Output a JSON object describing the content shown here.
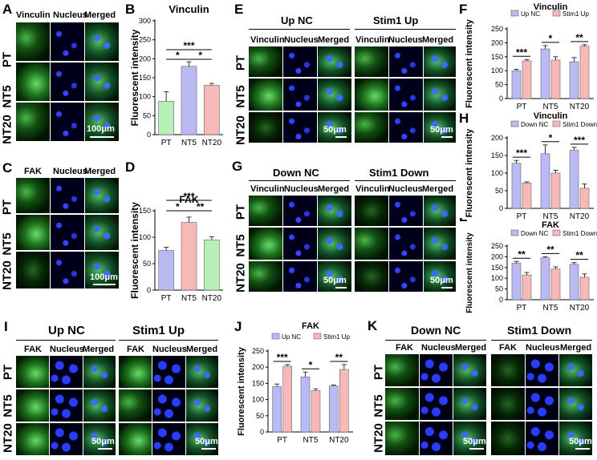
{
  "panels": {
    "A": {
      "letter": "A",
      "headers": [
        "Vinculin",
        "Nucleus",
        "Merged"
      ],
      "rows": [
        "PT",
        "NT5",
        "NT20"
      ],
      "scale": "100μm"
    },
    "C": {
      "letter": "C",
      "headers": [
        "FAK",
        "Nucleus",
        "Merged"
      ],
      "rows": [
        "PT",
        "NT5",
        "NT20"
      ],
      "scale": "100μm"
    },
    "E": {
      "letter": "E",
      "group1": "Up NC",
      "group2": "Stim1 Up",
      "headers": [
        "Vinculin",
        "Nucleus",
        "Merged"
      ],
      "rows": [
        "PT",
        "NT5",
        "NT20"
      ],
      "scale": "50μm"
    },
    "G": {
      "letter": "G",
      "group1": "Down NC",
      "group2": "Stim1 Down",
      "headers": [
        "Vinculin",
        "Nucleus",
        "Merged"
      ],
      "rows": [
        "PT",
        "NT5",
        "NT20"
      ],
      "scale": "50μm"
    },
    "I": {
      "letter": "I",
      "group1": "Up NC",
      "group2": "Stim1 Up",
      "headers": [
        "FAK",
        "Nucleus",
        "Merged"
      ],
      "rows": [
        "PT",
        "NT5",
        "NT20"
      ],
      "scale": "50μm"
    },
    "K": {
      "letter": "K",
      "group1": "Down NC",
      "group2": "Stim1 Down",
      "headers": [
        "FAK",
        "Nucleus",
        "Merged"
      ],
      "rows": [
        "PT",
        "NT5",
        "NT20"
      ],
      "scale": "50μm"
    }
  },
  "chart_data": [
    {
      "id": "B",
      "letter": "B",
      "type": "bar",
      "title": "Vinculin",
      "ylabel": "Fluorescent intensity",
      "categories": [
        "PT",
        "NT5",
        "NT20"
      ],
      "values": [
        88,
        180,
        130
      ],
      "errors": [
        25,
        12,
        5
      ],
      "colors": [
        "#b6f0b6",
        "#b9b9f4",
        "#f7b8b8"
      ],
      "ylim": [
        0,
        300
      ],
      "yticks": [
        "0",
        "50",
        "100",
        "150",
        "200",
        "250",
        "300"
      ],
      "sig": [
        "***",
        "*",
        "*"
      ]
    },
    {
      "id": "D",
      "letter": "D",
      "type": "bar",
      "title": "FAK",
      "ylabel": "Fluorescent intensity",
      "categories": [
        "PT",
        "NT5",
        "NT20"
      ],
      "values": [
        75,
        128,
        95
      ],
      "errors": [
        6,
        10,
        6
      ],
      "colors": [
        "#b9b9f4",
        "#f7b8b8",
        "#b6f0b6"
      ],
      "ylim": [
        0,
        150
      ],
      "yticks": [
        "0",
        "50",
        "100",
        "150"
      ],
      "sig": [
        "***",
        "*",
        "**"
      ]
    },
    {
      "id": "F",
      "letter": "F",
      "type": "bar",
      "title": "Vinculin",
      "ylabel": "Fluorescent intensity",
      "categories": [
        "PT",
        "NT5",
        "NT20"
      ],
      "series": [
        {
          "name": "Up NC",
          "values": [
            100,
            178,
            132
          ],
          "errors": [
            5,
            12,
            15
          ],
          "color": "#b9b9f4"
        },
        {
          "name": "Stim1 Up",
          "values": [
            135,
            138,
            188
          ],
          "errors": [
            5,
            12,
            5
          ],
          "color": "#f7b8b8"
        }
      ],
      "ylim": [
        0,
        250
      ],
      "yticks": [
        "0",
        "50",
        "100",
        "150",
        "200",
        "250"
      ],
      "sig": [
        "***",
        "*",
        "**"
      ]
    },
    {
      "id": "H",
      "letter": "H",
      "type": "bar",
      "title": "Vinculin",
      "ylabel": "Fluorescent intensity",
      "categories": [
        "PT",
        "NT5",
        "NT20"
      ],
      "series": [
        {
          "name": "Down NC",
          "values": [
            128,
            155,
            165
          ],
          "errors": [
            8,
            25,
            8
          ],
          "color": "#b9b9f4"
        },
        {
          "name": "Stim1 Down",
          "values": [
            72,
            100,
            57
          ],
          "errors": [
            3,
            8,
            12
          ],
          "color": "#f7b8b8"
        }
      ],
      "ylim": [
        0,
        200
      ],
      "yticks": [
        "0",
        "50",
        "100",
        "150",
        "200"
      ],
      "sig": [
        "***",
        "*",
        "***"
      ]
    },
    {
      "id": "L",
      "letter": "L",
      "type": "bar",
      "title": "FAK",
      "ylabel": "Fluorescent intensity",
      "categories": [
        "PT",
        "NT5",
        "NT20"
      ],
      "series": [
        {
          "name": "Down NC",
          "values": [
            170,
            195,
            165
          ],
          "errors": [
            8,
            5,
            8
          ],
          "color": "#b9b9f4"
        },
        {
          "name": "Stim1 Down",
          "values": [
            115,
            143,
            105
          ],
          "errors": [
            12,
            10,
            15
          ],
          "color": "#f7b8b8"
        }
      ],
      "ylim": [
        0,
        250
      ],
      "yticks": [
        "0",
        "50",
        "100",
        "150",
        "200",
        "250"
      ],
      "sig": [
        "**",
        "**",
        "**"
      ]
    },
    {
      "id": "J",
      "letter": "J",
      "type": "bar",
      "title": "FAK",
      "ylabel": "Fluorescent intensity",
      "categories": [
        "PT",
        "NT5",
        "NT20"
      ],
      "series": [
        {
          "name": "Up NC",
          "values": [
            140,
            170,
            142
          ],
          "errors": [
            8,
            15,
            3
          ],
          "color": "#b9b9f4"
        },
        {
          "name": "Stim1 Up",
          "values": [
            203,
            128,
            193
          ],
          "errors": [
            5,
            5,
            15
          ],
          "color": "#f7b8b8"
        }
      ],
      "ylim": [
        0,
        250
      ],
      "yticks": [
        "0",
        "50",
        "100",
        "150",
        "200",
        "250"
      ],
      "sig": [
        "***",
        "*",
        "**"
      ]
    }
  ]
}
